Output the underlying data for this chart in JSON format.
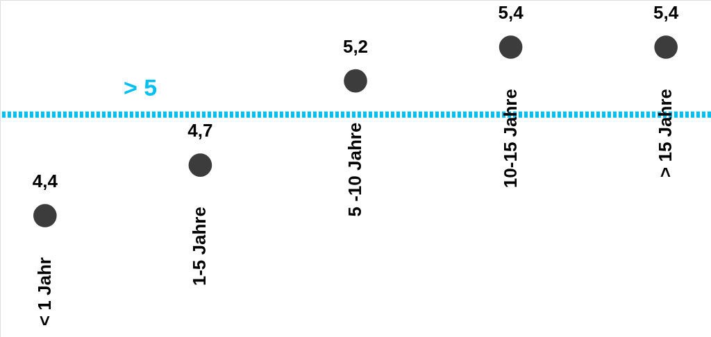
{
  "chart_data": {
    "type": "scatter",
    "categories": [
      "< 1 Jahr",
      "1-5 Jahre",
      "5 -10 Jahre",
      "10-15 Jahre",
      "> 15 Jahre"
    ],
    "values": [
      4.4,
      4.7,
      5.2,
      5.4,
      5.4
    ],
    "color": "#3c3c3c",
    "marker": "circle",
    "value_labels": [
      "4,4",
      "4,7",
      "5,2",
      "5,4",
      "5,4"
    ],
    "ylim": [
      3.68,
      5.68
    ],
    "tick_labels": false,
    "ref_lines": [
      {
        "axis": "y",
        "value": 5,
        "label": "> 5",
        "color": "#00c0f3",
        "line_style": "dotted"
      }
    ]
  }
}
